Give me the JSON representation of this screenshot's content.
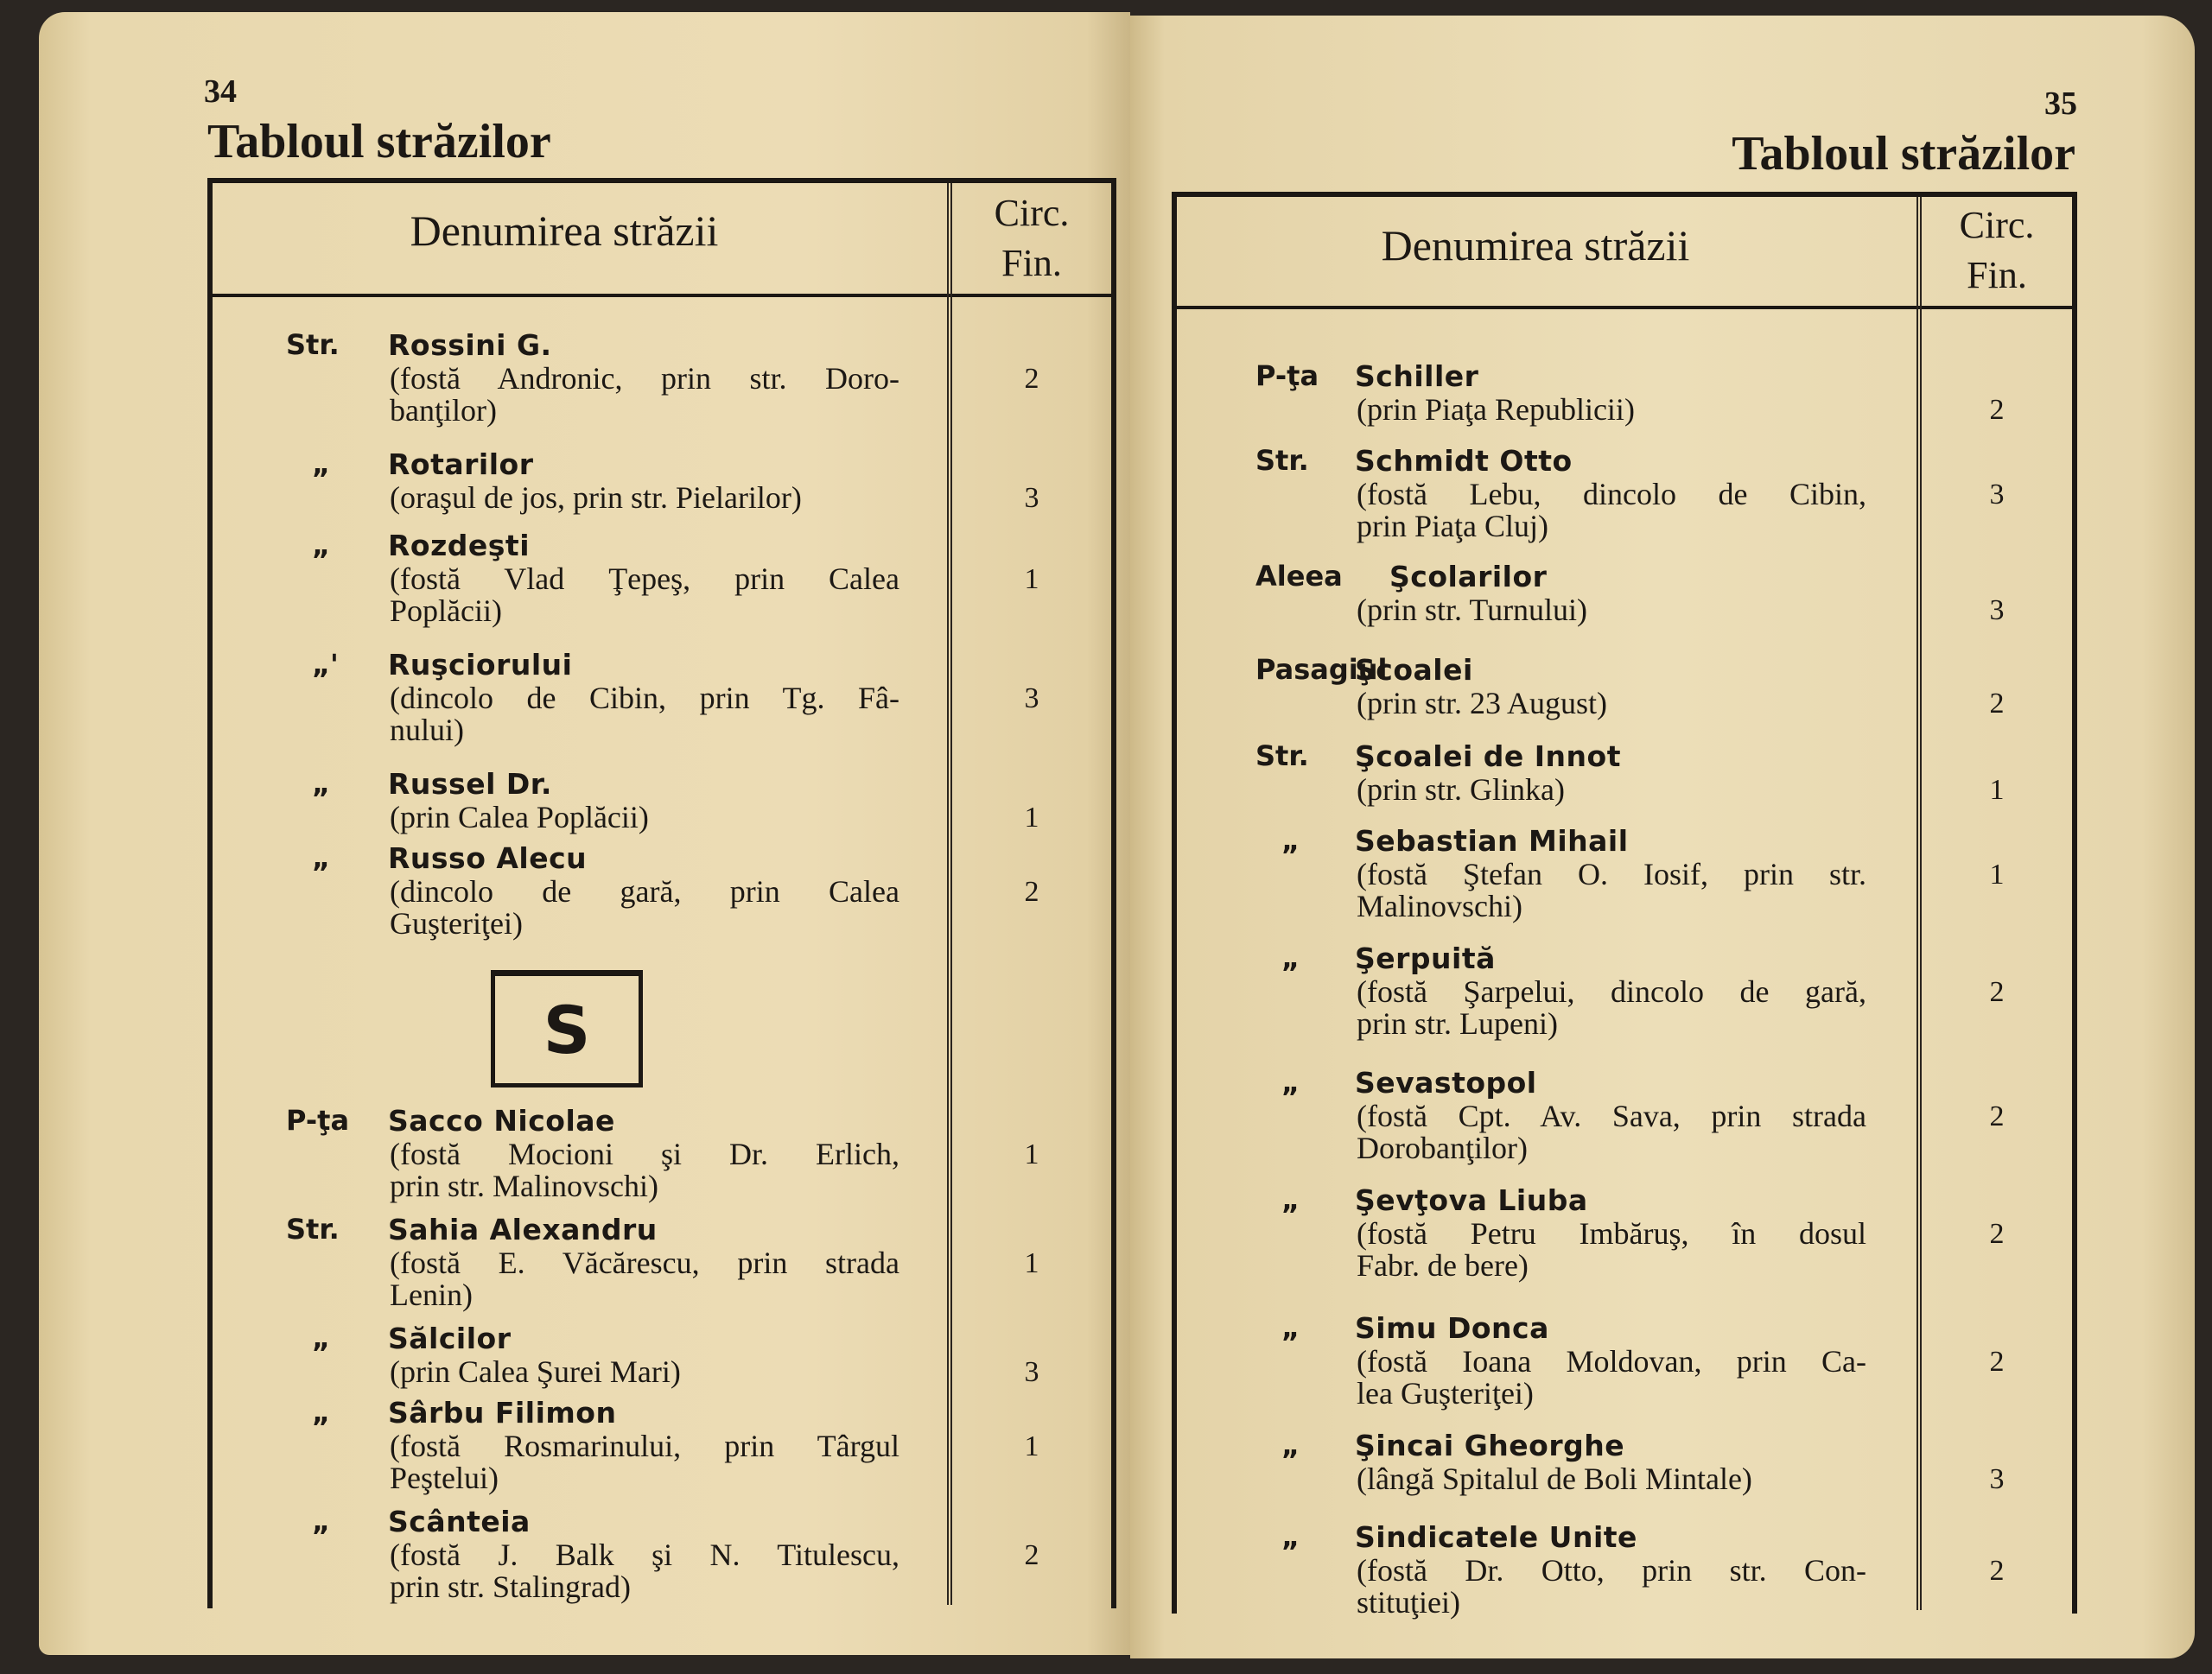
{
  "left_page": {
    "page_number": "34",
    "title": "Tabloul străzilor",
    "header": {
      "name_col": "Denumirea străzii",
      "circ_col_line1": "Circ.",
      "circ_col_line2": "Fin."
    },
    "section_letter": "S",
    "entries": [
      {
        "prefix": "Str.",
        "name": "Rossini G.",
        "desc": [
          "(fostă Andronic, prin str. Doro-",
          "banţilor)"
        ],
        "circ": "2"
      },
      {
        "prefix": "„",
        "name": "Rotarilor",
        "desc": [
          "(oraşul de jos, prin str. Pielarilor)"
        ],
        "circ": "3"
      },
      {
        "prefix": "„",
        "name": "Rozdeşti",
        "desc": [
          "(fostă Vlad Ţepeş, prin Calea",
          "Poplăcii)"
        ],
        "circ": "1"
      },
      {
        "prefix": "„'",
        "name": "Ruşciorului",
        "desc": [
          "(dincolo de Cibin, prin Tg. Fâ-",
          "nului)"
        ],
        "circ": "3"
      },
      {
        "prefix": "„",
        "name": "Russel Dr.",
        "desc": [
          "(prin Calea Poplăcii)"
        ],
        "circ": "1"
      },
      {
        "prefix": "„",
        "name": "Russo Alecu",
        "desc": [
          "(dincolo de gară, prin Calea",
          "Guşteriţei)"
        ],
        "circ": "2"
      },
      {
        "prefix": "P-ţa",
        "name": "Sacco Nicolae",
        "desc": [
          "(fostă Mocioni şi Dr. Erlich,",
          "prin str. Malinovschi)"
        ],
        "circ": "1"
      },
      {
        "prefix": "Str.",
        "name": "Sahia Alexandru",
        "desc": [
          "(fostă E. Văcărescu, prin strada",
          "Lenin)"
        ],
        "circ": "1"
      },
      {
        "prefix": "„",
        "name": "Sălcilor",
        "desc": [
          "(prin Calea Şurei Mari)"
        ],
        "circ": "3"
      },
      {
        "prefix": "„",
        "name": "Sârbu Filimon",
        "desc": [
          "(fostă Rosmarinului, prin Târgul",
          "Peştelui)"
        ],
        "circ": "1"
      },
      {
        "prefix": "„",
        "name": "Scânteia",
        "desc": [
          "(fostă J. Balk şi N. Titulescu,",
          "prin str. Stalingrad)"
        ],
        "circ": "2"
      }
    ]
  },
  "right_page": {
    "page_number": "35",
    "title": "Tabloul străzilor",
    "header": {
      "name_col": "Denumirea străzii",
      "circ_col_line1": "Circ.",
      "circ_col_line2": "Fin."
    },
    "entries": [
      {
        "prefix": "P-ţa",
        "name": "Schiller",
        "desc": [
          "(prin Piaţa Republicii)"
        ],
        "circ": "2"
      },
      {
        "prefix": "Str.",
        "name": "Schmidt Otto",
        "desc": [
          "(fostă Lebu, dincolo de Cibin,",
          "prin Piaţa Cluj)"
        ],
        "circ": "3"
      },
      {
        "prefix": "Aleea",
        "name": "Şcolarilor",
        "desc": [
          "(prin str. Turnului)"
        ],
        "circ": "3"
      },
      {
        "prefix": "Pasagiul",
        "name": "Şcoalei",
        "desc": [
          "(prin str. 23 August)"
        ],
        "circ": "2"
      },
      {
        "prefix": "Str.",
        "name": "Şcoalei de Innot",
        "desc": [
          "(prin str. Glinka)"
        ],
        "circ": "1"
      },
      {
        "prefix": "„",
        "name": "Sebastian Mihail",
        "desc": [
          "(fostă Ştefan O. Iosif, prin str.",
          "Malinovschi)"
        ],
        "circ": "1"
      },
      {
        "prefix": "„",
        "name": "Şerpuită",
        "desc": [
          "(fostă Şarpelui, dincolo de gară,",
          "prin str. Lupeni)"
        ],
        "circ": "2"
      },
      {
        "prefix": "„",
        "name": "Sevastopol",
        "desc": [
          "(fostă Cpt. Av. Sava, prin strada",
          "Dorobanţilor)"
        ],
        "circ": "2"
      },
      {
        "prefix": "„",
        "name": "Şevţova Liuba",
        "desc": [
          "(fostă Petru Imbăruş, în dosul",
          "Fabr. de bere)"
        ],
        "circ": "2"
      },
      {
        "prefix": "„",
        "name": "Simu Donca",
        "desc": [
          "(fostă Ioana Moldovan, prin Ca-",
          "lea Guşteriţei)"
        ],
        "circ": "2"
      },
      {
        "prefix": "„",
        "name": "Şincai Gheorghe",
        "desc": [
          "(lângă Spitalul de Boli Mintale)"
        ],
        "circ": "3"
      },
      {
        "prefix": "„",
        "name": "Sindicatele Unite",
        "desc": [
          "(fostă Dr. Otto, prin str. Con-",
          "stituţiei)"
        ],
        "circ": "2"
      }
    ]
  }
}
